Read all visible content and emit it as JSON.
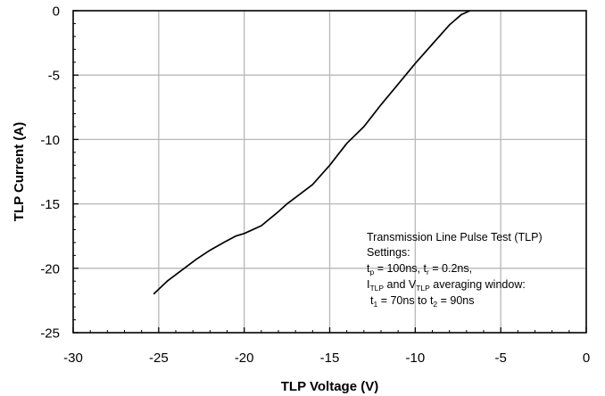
{
  "chart_data": {
    "type": "line",
    "title": "",
    "xlabel": "TLP Voltage (V)",
    "ylabel": "TLP Current (A)",
    "xlim": [
      -30,
      0
    ],
    "ylim": [
      -25,
      0
    ],
    "xticks": [
      "-30",
      "-25",
      "-20",
      "-15",
      "-10",
      "-5",
      "0"
    ],
    "yticks": [
      "0",
      "-5",
      "-10",
      "-15",
      "-20",
      "-25"
    ],
    "grid": true,
    "series": [
      {
        "name": "",
        "x": [
          -25.3,
          -24.5,
          -23.6,
          -22.8,
          -22.0,
          -21.2,
          -20.5,
          -20.0,
          -19.0,
          -18.0,
          -17.5,
          -17.0,
          -16.0,
          -15.0,
          -14.0,
          -13.0,
          -12.0,
          -11.0,
          -10.0,
          -9.0,
          -8.0,
          -7.3,
          -6.8
        ],
        "y": [
          -22.0,
          -21.0,
          -20.1,
          -19.3,
          -18.6,
          -18.0,
          -17.5,
          -17.3,
          -16.7,
          -15.6,
          -15.0,
          -14.5,
          -13.5,
          -12.0,
          -10.3,
          -9.0,
          -7.3,
          -5.7,
          -4.1,
          -2.6,
          -1.1,
          -0.3,
          0.0
        ]
      }
    ],
    "annotation": {
      "line1": "Transmission Line Pulse Test (TLP)",
      "line2": "Settings:",
      "line3_t": "t",
      "line3_p": "p",
      "line3_mid": " = 100ns, t",
      "line3_r": "r",
      "line3_end": " = 0.2ns,",
      "line4_I": "I",
      "line4_sub1": "TLP",
      "line4_mid": " and V",
      "line4_sub2": "TLP",
      "line4_end": " averaging window:",
      "line5_t1": "t",
      "line5_sub1": "1",
      "line5_mid": " = 70ns to t",
      "line5_sub2": "2",
      "line5_end": " = 90ns"
    }
  }
}
